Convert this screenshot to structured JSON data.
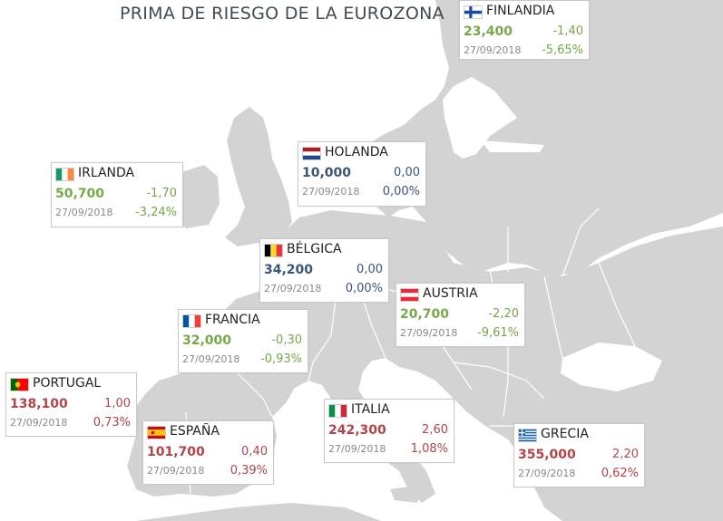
{
  "title": "PRIMA DE RIESGO DE LA EUROZONA",
  "countries": [
    {
      "name": "FINLANDIA",
      "value": "23,400",
      "change": "-1,40",
      "pct": "-5,65%",
      "date": "27/09/2018",
      "trend": "down",
      "flag": "finland-flag"
    },
    {
      "name": "HOLANDA",
      "value": "10,000",
      "change": "0,00",
      "pct": "0,00%",
      "date": "27/09/2018",
      "trend": "flat",
      "flag": "netherlands-flag"
    },
    {
      "name": "IRLANDA",
      "value": "50,700",
      "change": "-1,70",
      "pct": "-3,24%",
      "date": "27/09/2018",
      "trend": "down",
      "flag": "ireland-flag"
    },
    {
      "name": "BÉLGICA",
      "value": "34,200",
      "change": "0,00",
      "pct": "0,00%",
      "date": "27/09/2018",
      "trend": "flat",
      "flag": "belgium-flag"
    },
    {
      "name": "AUSTRIA",
      "value": "20,700",
      "change": "-2,20",
      "pct": "-9,61%",
      "date": "27/09/2018",
      "trend": "down",
      "flag": "austria-flag"
    },
    {
      "name": "FRANCIA",
      "value": "32,000",
      "change": "-0,30",
      "pct": "-0,93%",
      "date": "27/09/2018",
      "trend": "down",
      "flag": "france-flag"
    },
    {
      "name": "PORTUGAL",
      "value": "138,100",
      "change": "1,00",
      "pct": "0,73%",
      "date": "27/09/2018",
      "trend": "up",
      "flag": "portugal-flag"
    },
    {
      "name": "ESPAÑA",
      "value": "101,700",
      "change": "0,40",
      "pct": "0,39%",
      "date": "27/09/2018",
      "trend": "up",
      "flag": "spain-flag"
    },
    {
      "name": "ITALIA",
      "value": "242,300",
      "change": "2,60",
      "pct": "1,08%",
      "date": "27/09/2018",
      "trend": "up",
      "flag": "italy-flag"
    },
    {
      "name": "GRECIA",
      "value": "355,000",
      "change": "2,20",
      "pct": "0,62%",
      "date": "27/09/2018",
      "trend": "up",
      "flag": "greece-flag"
    }
  ],
  "colors": {
    "up": "#b0454a",
    "down": "#77a84a",
    "flat": "#3b5578",
    "land": "#d3d3d3",
    "border": "#ffffff"
  }
}
